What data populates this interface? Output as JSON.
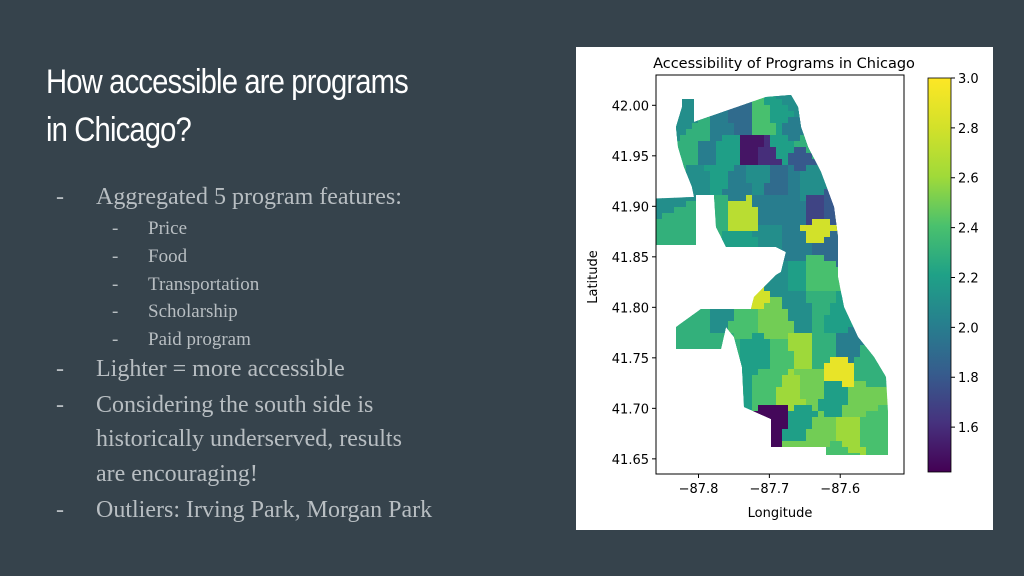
{
  "slide": {
    "title_line1": "How accessible are programs",
    "title_line2": "in Chicago?",
    "bullets": [
      {
        "dash": "-",
        "text": "Aggregated 5 program features:"
      },
      {
        "dash": "-",
        "text": "Lighter = more accessible"
      },
      {
        "dash": "-",
        "text": "Considering the south side is",
        "cont": [
          "historically underserved, results",
          "are encouraging!"
        ]
      },
      {
        "dash": "-",
        "text": "Outliers: Irving Park, Morgan Park"
      }
    ],
    "sub_bullets": [
      {
        "dash": "-",
        "text": "Price"
      },
      {
        "dash": "-",
        "text": "Food"
      },
      {
        "dash": "-",
        "text": "Transportation"
      },
      {
        "dash": "-",
        "text": "Scholarship"
      },
      {
        "dash": "-",
        "text": "Paid program"
      }
    ]
  },
  "colors": {
    "background": "#36434c",
    "title": "#ffffff",
    "body_text": "#b8bec2"
  },
  "chart_data": {
    "type": "heatmap",
    "subtype": "choropleth map",
    "title": "Accessibility of Programs in Chicago",
    "xlabel": "Longitude",
    "ylabel": "Latitude",
    "xticks": [
      "−87.8",
      "−87.7",
      "−87.6"
    ],
    "yticks": [
      "42.00",
      "41.95",
      "41.90",
      "41.85",
      "41.80",
      "41.75",
      "41.70",
      "41.65"
    ],
    "xlim": [
      -87.86,
      -87.51
    ],
    "ylim": [
      41.635,
      42.03
    ],
    "colorbar": {
      "ticks": [
        "3.0",
        "2.8",
        "2.6",
        "2.4",
        "2.2",
        "2.0",
        "1.8",
        "1.6"
      ],
      "range": [
        1.42,
        3.0
      ],
      "colormap": "viridis"
    },
    "regions": [
      {
        "lon": -87.82,
        "lat": 41.985,
        "value": 2.1
      },
      {
        "lon": -87.8,
        "lat": 41.975,
        "value": 2.3
      },
      {
        "lon": -87.77,
        "lat": 41.98,
        "value": 2.0
      },
      {
        "lon": -87.74,
        "lat": 41.985,
        "value": 1.9
      },
      {
        "lon": -87.71,
        "lat": 41.985,
        "value": 2.4
      },
      {
        "lon": -87.685,
        "lat": 41.99,
        "value": 2.2
      },
      {
        "lon": -87.665,
        "lat": 42.005,
        "value": 2.1
      },
      {
        "lon": -87.665,
        "lat": 41.975,
        "value": 2.0
      },
      {
        "lon": -87.81,
        "lat": 41.955,
        "value": 2.3
      },
      {
        "lon": -87.785,
        "lat": 41.955,
        "value": 2.0
      },
      {
        "lon": -87.76,
        "lat": 41.955,
        "value": 2.2
      },
      {
        "lon": -87.725,
        "lat": 41.955,
        "value": 1.5
      },
      {
        "lon": -87.705,
        "lat": 41.95,
        "value": 1.6
      },
      {
        "lon": -87.68,
        "lat": 41.96,
        "value": 2.2
      },
      {
        "lon": -87.655,
        "lat": 41.95,
        "value": 1.8
      },
      {
        "lon": -87.645,
        "lat": 41.96,
        "value": 2.3
      },
      {
        "lon": -87.8,
        "lat": 41.925,
        "value": 2.1
      },
      {
        "lon": -87.77,
        "lat": 41.93,
        "value": 2.2
      },
      {
        "lon": -87.745,
        "lat": 41.925,
        "value": 2.0
      },
      {
        "lon": -87.715,
        "lat": 41.93,
        "value": 2.1
      },
      {
        "lon": -87.69,
        "lat": 41.925,
        "value": 1.9
      },
      {
        "lon": -87.665,
        "lat": 41.925,
        "value": 2.0
      },
      {
        "lon": -87.645,
        "lat": 41.925,
        "value": 2.1
      },
      {
        "lon": -87.78,
        "lat": 41.895,
        "value": 2.3
      },
      {
        "lon": -87.735,
        "lat": 41.89,
        "value": 2.7
      },
      {
        "lon": -87.7,
        "lat": 41.895,
        "value": 2.0
      },
      {
        "lon": -87.67,
        "lat": 41.895,
        "value": 2.0
      },
      {
        "lon": -87.635,
        "lat": 41.895,
        "value": 1.7
      },
      {
        "lon": -87.61,
        "lat": 41.9,
        "value": 1.8
      },
      {
        "lon": -87.735,
        "lat": 41.86,
        "value": 2.2
      },
      {
        "lon": -87.7,
        "lat": 41.865,
        "value": 2.1
      },
      {
        "lon": -87.665,
        "lat": 41.86,
        "value": 2.0
      },
      {
        "lon": -87.63,
        "lat": 41.875,
        "value": 2.8
      },
      {
        "lon": -87.615,
        "lat": 41.86,
        "value": 1.9
      },
      {
        "lon": -87.69,
        "lat": 41.835,
        "value": 2.1
      },
      {
        "lon": -87.66,
        "lat": 41.835,
        "value": 2.2
      },
      {
        "lon": -87.63,
        "lat": 41.835,
        "value": 2.4
      },
      {
        "lon": -87.8,
        "lat": 41.795,
        "value": 2.3
      },
      {
        "lon": -87.765,
        "lat": 41.795,
        "value": 2.1
      },
      {
        "lon": -87.735,
        "lat": 41.81,
        "value": 2.8
      },
      {
        "lon": -87.735,
        "lat": 41.785,
        "value": 2.4
      },
      {
        "lon": -87.69,
        "lat": 41.785,
        "value": 2.5
      },
      {
        "lon": -87.655,
        "lat": 41.795,
        "value": 2.1
      },
      {
        "lon": -87.63,
        "lat": 41.8,
        "value": 2.3
      },
      {
        "lon": -87.605,
        "lat": 41.79,
        "value": 2.2
      },
      {
        "lon": -87.755,
        "lat": 41.755,
        "value": 2.3
      },
      {
        "lon": -87.72,
        "lat": 41.755,
        "value": 2.2
      },
      {
        "lon": -87.685,
        "lat": 41.755,
        "value": 2.4
      },
      {
        "lon": -87.655,
        "lat": 41.76,
        "value": 2.6
      },
      {
        "lon": -87.625,
        "lat": 41.76,
        "value": 2.3
      },
      {
        "lon": -87.59,
        "lat": 41.76,
        "value": 2.0
      },
      {
        "lon": -87.565,
        "lat": 41.745,
        "value": 2.3
      },
      {
        "lon": -87.6,
        "lat": 41.74,
        "value": 2.9
      },
      {
        "lon": -87.74,
        "lat": 41.72,
        "value": 2.2
      },
      {
        "lon": -87.705,
        "lat": 41.72,
        "value": 2.4
      },
      {
        "lon": -87.67,
        "lat": 41.715,
        "value": 2.6
      },
      {
        "lon": -87.64,
        "lat": 41.72,
        "value": 2.5
      },
      {
        "lon": -87.61,
        "lat": 41.71,
        "value": 2.2
      },
      {
        "lon": -87.575,
        "lat": 41.705,
        "value": 2.5
      },
      {
        "lon": -87.69,
        "lat": 41.69,
        "value": 1.45
      },
      {
        "lon": -87.66,
        "lat": 41.685,
        "value": 2.2
      },
      {
        "lon": -87.625,
        "lat": 41.675,
        "value": 2.5
      },
      {
        "lon": -87.59,
        "lat": 41.675,
        "value": 2.6
      },
      {
        "lon": -87.555,
        "lat": 41.68,
        "value": 2.4
      },
      {
        "lon": -87.65,
        "lat": 41.655,
        "value": 2.5
      },
      {
        "lon": -87.61,
        "lat": 41.655,
        "value": 2.4
      }
    ]
  }
}
